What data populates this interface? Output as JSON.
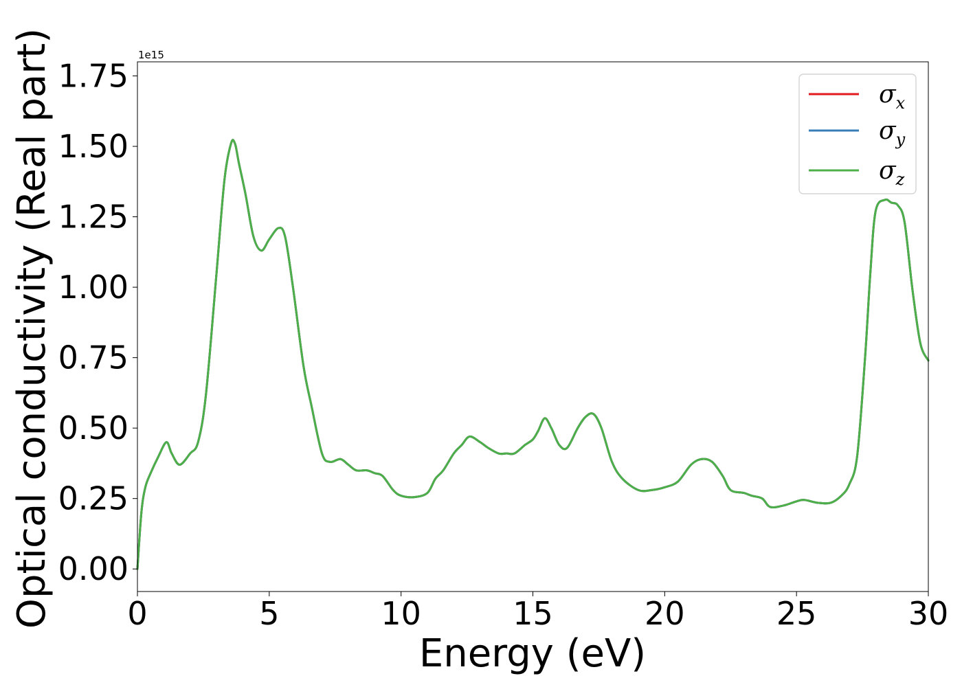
{
  "chart_data": {
    "type": "line",
    "xlabel": "Energy (eV)",
    "ylabel": "Optical conductivity (Real part)",
    "y_offset_label": "1e15",
    "xlim": [
      0,
      30
    ],
    "ylim": [
      -0.08,
      1.8
    ],
    "x_ticks": [
      0,
      5,
      10,
      15,
      20,
      25,
      30
    ],
    "x_tick_labels": [
      "0",
      "5",
      "10",
      "15",
      "20",
      "25",
      "30"
    ],
    "y_ticks": [
      0.0,
      0.25,
      0.5,
      0.75,
      1.0,
      1.25,
      1.5,
      1.75
    ],
    "y_tick_labels": [
      "0.00",
      "0.25",
      "0.50",
      "0.75",
      "1.00",
      "1.25",
      "1.50",
      "1.75"
    ],
    "grid": false,
    "legend_position": "top-right",
    "x": [
      0,
      0.15,
      0.3,
      0.5,
      0.8,
      1.1,
      1.3,
      1.6,
      2.0,
      2.3,
      2.6,
      3.0,
      3.3,
      3.55,
      3.7,
      3.85,
      4.1,
      4.4,
      4.7,
      5.0,
      5.35,
      5.6,
      5.9,
      6.3,
      6.6,
      7.0,
      7.3,
      7.7,
      8.0,
      8.3,
      8.7,
      9.0,
      9.3,
      9.7,
      10.0,
      10.5,
      11.0,
      11.3,
      11.6,
      12.0,
      12.3,
      12.6,
      13.0,
      13.3,
      13.7,
      14.0,
      14.3,
      14.7,
      15.0,
      15.2,
      15.45,
      15.7,
      16.0,
      16.3,
      16.7,
      17.0,
      17.3,
      17.6,
      18.0,
      18.4,
      19.0,
      19.5,
      20.0,
      20.5,
      21.0,
      21.4,
      21.8,
      22.2,
      22.5,
      23.0,
      23.3,
      23.7,
      24.0,
      24.5,
      25.0,
      25.3,
      25.8,
      26.3,
      26.7,
      27.0,
      27.3,
      27.6,
      27.8,
      28.0,
      28.35,
      28.6,
      28.85,
      29.1,
      29.4,
      29.7,
      30.0
    ],
    "series": [
      {
        "name": "σx",
        "color": "#e31a1c",
        "values": [
          0.0,
          0.2,
          0.29,
          0.34,
          0.4,
          0.45,
          0.41,
          0.37,
          0.41,
          0.45,
          0.62,
          1.05,
          1.38,
          1.51,
          1.51,
          1.44,
          1.33,
          1.18,
          1.13,
          1.17,
          1.21,
          1.18,
          1.0,
          0.72,
          0.58,
          0.41,
          0.38,
          0.39,
          0.37,
          0.35,
          0.35,
          0.34,
          0.33,
          0.28,
          0.26,
          0.255,
          0.27,
          0.32,
          0.35,
          0.41,
          0.44,
          0.47,
          0.45,
          0.43,
          0.41,
          0.41,
          0.41,
          0.44,
          0.46,
          0.49,
          0.535,
          0.5,
          0.44,
          0.43,
          0.5,
          0.54,
          0.55,
          0.5,
          0.38,
          0.32,
          0.28,
          0.28,
          0.29,
          0.31,
          0.37,
          0.39,
          0.38,
          0.33,
          0.28,
          0.27,
          0.26,
          0.25,
          0.22,
          0.225,
          0.24,
          0.245,
          0.235,
          0.235,
          0.26,
          0.3,
          0.4,
          0.75,
          1.05,
          1.27,
          1.31,
          1.3,
          1.29,
          1.23,
          0.99,
          0.8,
          0.74
        ]
      },
      {
        "name": "σy",
        "color": "#377eb8",
        "values": [
          0.0,
          0.2,
          0.29,
          0.34,
          0.4,
          0.45,
          0.41,
          0.37,
          0.41,
          0.45,
          0.62,
          1.05,
          1.38,
          1.51,
          1.51,
          1.44,
          1.33,
          1.18,
          1.13,
          1.17,
          1.21,
          1.18,
          1.0,
          0.72,
          0.58,
          0.41,
          0.38,
          0.39,
          0.37,
          0.35,
          0.35,
          0.34,
          0.33,
          0.28,
          0.26,
          0.255,
          0.27,
          0.32,
          0.35,
          0.41,
          0.44,
          0.47,
          0.45,
          0.43,
          0.41,
          0.41,
          0.41,
          0.44,
          0.46,
          0.49,
          0.535,
          0.5,
          0.44,
          0.43,
          0.5,
          0.54,
          0.55,
          0.5,
          0.38,
          0.32,
          0.28,
          0.28,
          0.29,
          0.31,
          0.37,
          0.39,
          0.38,
          0.33,
          0.28,
          0.27,
          0.26,
          0.25,
          0.22,
          0.225,
          0.24,
          0.245,
          0.235,
          0.235,
          0.26,
          0.3,
          0.4,
          0.75,
          1.05,
          1.27,
          1.31,
          1.3,
          1.29,
          1.23,
          0.99,
          0.8,
          0.74
        ]
      },
      {
        "name": "σz",
        "color": "#4daf4a",
        "values": [
          0.0,
          0.2,
          0.29,
          0.34,
          0.4,
          0.45,
          0.41,
          0.37,
          0.41,
          0.45,
          0.62,
          1.05,
          1.38,
          1.51,
          1.51,
          1.44,
          1.33,
          1.18,
          1.13,
          1.17,
          1.21,
          1.18,
          1.0,
          0.72,
          0.58,
          0.41,
          0.38,
          0.39,
          0.37,
          0.35,
          0.35,
          0.34,
          0.33,
          0.28,
          0.26,
          0.255,
          0.27,
          0.32,
          0.35,
          0.41,
          0.44,
          0.47,
          0.45,
          0.43,
          0.41,
          0.41,
          0.41,
          0.44,
          0.46,
          0.49,
          0.535,
          0.5,
          0.44,
          0.43,
          0.5,
          0.54,
          0.55,
          0.5,
          0.38,
          0.32,
          0.28,
          0.28,
          0.29,
          0.31,
          0.37,
          0.39,
          0.38,
          0.33,
          0.28,
          0.27,
          0.26,
          0.25,
          0.22,
          0.225,
          0.24,
          0.245,
          0.235,
          0.235,
          0.26,
          0.3,
          0.4,
          0.75,
          1.05,
          1.27,
          1.31,
          1.3,
          1.29,
          1.23,
          0.99,
          0.8,
          0.74
        ]
      }
    ],
    "legend": [
      {
        "symbol": "σ",
        "sub": "x"
      },
      {
        "symbol": "σ",
        "sub": "y"
      },
      {
        "symbol": "σ",
        "sub": "z"
      }
    ]
  }
}
